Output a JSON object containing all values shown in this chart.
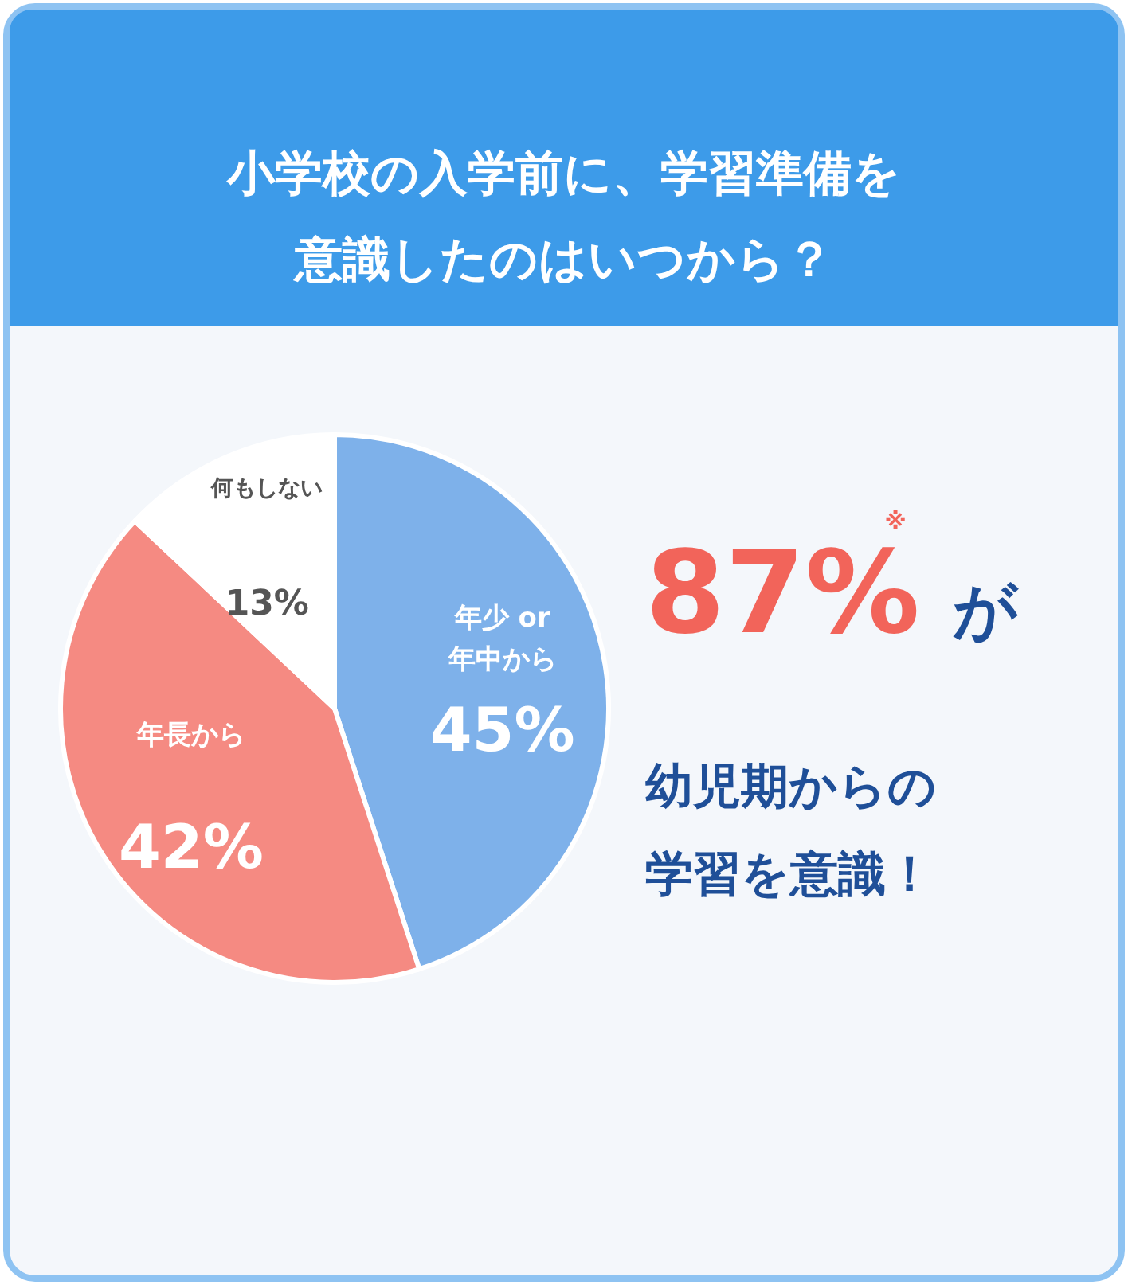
{
  "chart_data": {
    "type": "pie",
    "title": "小学校の入学前に、学習準備を意識したのはいつから？",
    "categories": [
      "年少 or\n年中から",
      "年長から",
      "何もしない"
    ],
    "values": [
      45,
      42,
      13
    ],
    "colors": [
      "#7eb1ea",
      "#f58a82",
      "#ffffff"
    ],
    "value_labels": [
      "45%",
      "42%",
      "13%"
    ],
    "annotations": [
      "87%",
      "が",
      "※",
      "幼児期からの学習を意識！"
    ]
  }
}
